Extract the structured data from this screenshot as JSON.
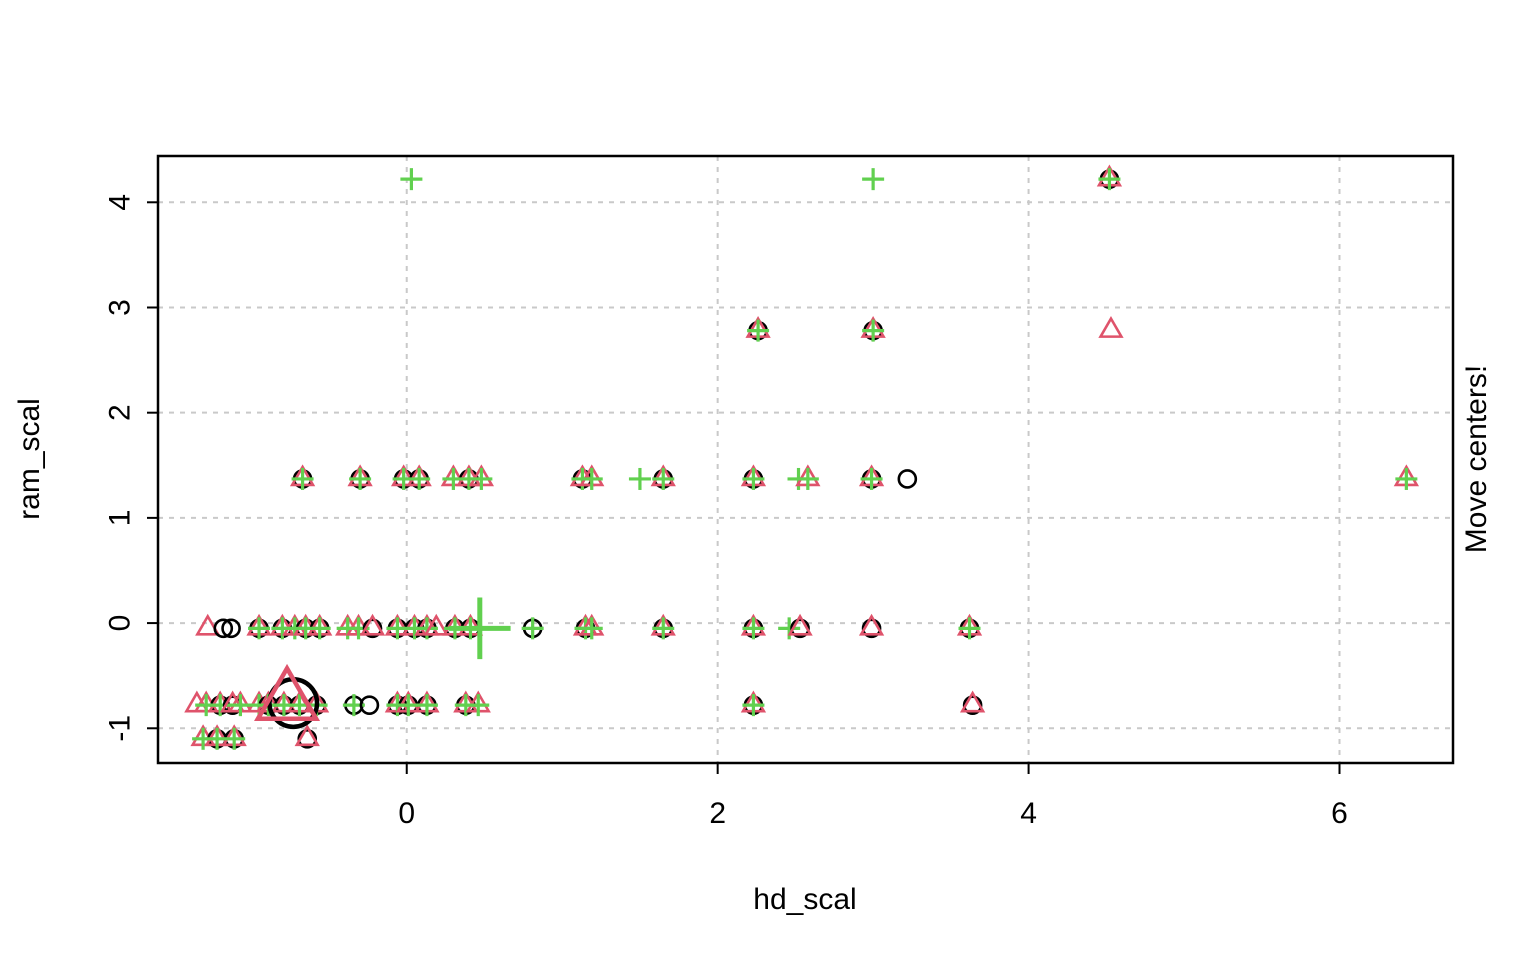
{
  "chart_data": {
    "type": "scatter",
    "title": "",
    "xlabel": "hd_scal",
    "ylabel": "ram_scal",
    "right_label": "Move centers!",
    "xlim": [
      -1.6,
      6.73
    ],
    "ylim": [
      -1.33,
      4.44
    ],
    "xticks": [
      0,
      2,
      4,
      6
    ],
    "yticks": [
      -1,
      0,
      1,
      2,
      3,
      4
    ],
    "grid": {
      "shown": true,
      "style": "dashed",
      "at_x": [
        0,
        2,
        4,
        6
      ],
      "at_y": [
        -1,
        0,
        1,
        2,
        3,
        4
      ]
    },
    "legend_position": "none",
    "colors": {
      "circle": "#000000",
      "triangle": "#DF536B",
      "plus": "#61D04F",
      "grid": "#C9C9C9",
      "box": "#000000",
      "background": "#FFFFFF"
    },
    "glyph_meaning": {
      "circle": "cluster-1 assignment",
      "triangle": "cluster-2 assignment",
      "plus": "cluster-3 assignment",
      "large": "cluster center"
    },
    "points": [
      {
        "x": 0.03,
        "y": 4.22,
        "glyphs": [
          "plus"
        ],
        "size": "normal"
      },
      {
        "x": 3.0,
        "y": 4.22,
        "glyphs": [
          "plus"
        ],
        "size": "normal"
      },
      {
        "x": 4.52,
        "y": 4.22,
        "glyphs": [
          "circle",
          "triangle",
          "plus"
        ],
        "size": "normal"
      },
      {
        "x": 2.26,
        "y": 2.78,
        "glyphs": [
          "circle",
          "triangle",
          "plus"
        ],
        "size": "normal"
      },
      {
        "x": 3.0,
        "y": 2.78,
        "glyphs": [
          "circle",
          "triangle",
          "plus"
        ],
        "size": "normal"
      },
      {
        "x": 4.53,
        "y": 2.78,
        "glyphs": [
          "triangle"
        ],
        "size": "normal"
      },
      {
        "x": -0.67,
        "y": 1.37,
        "glyphs": [
          "circle",
          "triangle",
          "plus"
        ],
        "size": "normal"
      },
      {
        "x": -0.3,
        "y": 1.37,
        "glyphs": [
          "circle",
          "triangle",
          "plus"
        ],
        "size": "normal"
      },
      {
        "x": -0.02,
        "y": 1.37,
        "glyphs": [
          "circle",
          "triangle",
          "plus"
        ],
        "size": "normal"
      },
      {
        "x": 0.08,
        "y": 1.37,
        "glyphs": [
          "circle",
          "triangle",
          "plus"
        ],
        "size": "normal"
      },
      {
        "x": 0.3,
        "y": 1.37,
        "glyphs": [
          "triangle",
          "plus"
        ],
        "size": "normal"
      },
      {
        "x": 0.4,
        "y": 1.37,
        "glyphs": [
          "circle",
          "triangle",
          "plus"
        ],
        "size": "normal"
      },
      {
        "x": 0.48,
        "y": 1.37,
        "glyphs": [
          "triangle",
          "plus"
        ],
        "size": "normal"
      },
      {
        "x": 1.13,
        "y": 1.37,
        "glyphs": [
          "circle",
          "triangle",
          "plus"
        ],
        "size": "normal"
      },
      {
        "x": 1.19,
        "y": 1.37,
        "glyphs": [
          "triangle",
          "plus"
        ],
        "size": "normal"
      },
      {
        "x": 1.5,
        "y": 1.37,
        "glyphs": [
          "plus"
        ],
        "size": "normal"
      },
      {
        "x": 1.65,
        "y": 1.37,
        "glyphs": [
          "circle",
          "triangle",
          "plus"
        ],
        "size": "normal"
      },
      {
        "x": 2.23,
        "y": 1.37,
        "glyphs": [
          "circle",
          "triangle",
          "plus"
        ],
        "size": "normal"
      },
      {
        "x": 2.52,
        "y": 1.37,
        "glyphs": [
          "plus"
        ],
        "size": "normal"
      },
      {
        "x": 2.58,
        "y": 1.37,
        "glyphs": [
          "triangle",
          "plus"
        ],
        "size": "normal"
      },
      {
        "x": 2.99,
        "y": 1.37,
        "glyphs": [
          "circle",
          "triangle",
          "plus"
        ],
        "size": "normal"
      },
      {
        "x": 3.22,
        "y": 1.37,
        "glyphs": [
          "circle"
        ],
        "size": "normal"
      },
      {
        "x": 6.43,
        "y": 1.37,
        "glyphs": [
          "triangle",
          "plus"
        ],
        "size": "normal"
      },
      {
        "x": -1.28,
        "y": -0.05,
        "glyphs": [
          "triangle"
        ],
        "size": "normal"
      },
      {
        "x": -1.18,
        "y": -0.05,
        "glyphs": [
          "circle"
        ],
        "size": "normal"
      },
      {
        "x": -1.13,
        "y": -0.05,
        "glyphs": [
          "circle"
        ],
        "size": "normal"
      },
      {
        "x": -0.95,
        "y": -0.05,
        "glyphs": [
          "circle",
          "triangle",
          "plus"
        ],
        "size": "normal"
      },
      {
        "x": -0.8,
        "y": -0.05,
        "glyphs": [
          "circle",
          "triangle",
          "plus"
        ],
        "size": "normal"
      },
      {
        "x": -0.72,
        "y": -0.05,
        "glyphs": [
          "triangle",
          "plus"
        ],
        "size": "normal"
      },
      {
        "x": -0.65,
        "y": -0.05,
        "glyphs": [
          "circle",
          "triangle",
          "plus"
        ],
        "size": "normal"
      },
      {
        "x": -0.56,
        "y": -0.05,
        "glyphs": [
          "circle",
          "triangle",
          "plus"
        ],
        "size": "normal"
      },
      {
        "x": -0.38,
        "y": -0.05,
        "glyphs": [
          "triangle",
          "plus"
        ],
        "size": "normal"
      },
      {
        "x": -0.31,
        "y": -0.05,
        "glyphs": [
          "triangle",
          "plus"
        ],
        "size": "normal"
      },
      {
        "x": -0.22,
        "y": -0.05,
        "glyphs": [
          "circle",
          "triangle"
        ],
        "size": "normal"
      },
      {
        "x": -0.06,
        "y": -0.05,
        "glyphs": [
          "circle",
          "triangle",
          "plus"
        ],
        "size": "normal"
      },
      {
        "x": 0.05,
        "y": -0.05,
        "glyphs": [
          "circle",
          "triangle",
          "plus"
        ],
        "size": "normal"
      },
      {
        "x": 0.13,
        "y": -0.05,
        "glyphs": [
          "circle",
          "triangle",
          "plus"
        ],
        "size": "normal"
      },
      {
        "x": 0.19,
        "y": -0.05,
        "glyphs": [
          "triangle"
        ],
        "size": "normal"
      },
      {
        "x": 0.31,
        "y": -0.05,
        "glyphs": [
          "circle",
          "triangle",
          "plus"
        ],
        "size": "normal"
      },
      {
        "x": 0.41,
        "y": -0.05,
        "glyphs": [
          "circle",
          "triangle",
          "plus"
        ],
        "size": "normal"
      },
      {
        "x": 0.81,
        "y": -0.05,
        "glyphs": [
          "circle",
          "plus"
        ],
        "size": "normal"
      },
      {
        "x": 1.15,
        "y": -0.05,
        "glyphs": [
          "circle",
          "triangle",
          "plus"
        ],
        "size": "normal"
      },
      {
        "x": 1.19,
        "y": -0.05,
        "glyphs": [
          "triangle",
          "plus"
        ],
        "size": "normal"
      },
      {
        "x": 1.65,
        "y": -0.05,
        "glyphs": [
          "circle",
          "triangle",
          "plus"
        ],
        "size": "normal"
      },
      {
        "x": 2.23,
        "y": -0.05,
        "glyphs": [
          "circle",
          "triangle",
          "plus"
        ],
        "size": "normal"
      },
      {
        "x": 2.46,
        "y": -0.05,
        "glyphs": [
          "plus"
        ],
        "size": "normal"
      },
      {
        "x": 2.53,
        "y": -0.05,
        "glyphs": [
          "circle",
          "triangle"
        ],
        "size": "normal"
      },
      {
        "x": 2.99,
        "y": -0.05,
        "glyphs": [
          "circle",
          "triangle"
        ],
        "size": "normal"
      },
      {
        "x": 3.62,
        "y": -0.05,
        "glyphs": [
          "circle",
          "triangle",
          "plus"
        ],
        "size": "normal"
      },
      {
        "x": -1.35,
        "y": -0.78,
        "glyphs": [
          "triangle"
        ],
        "size": "normal"
      },
      {
        "x": -1.29,
        "y": -0.78,
        "glyphs": [
          "triangle",
          "plus"
        ],
        "size": "normal"
      },
      {
        "x": -1.2,
        "y": -0.78,
        "glyphs": [
          "circle",
          "triangle",
          "plus"
        ],
        "size": "normal"
      },
      {
        "x": -1.12,
        "y": -0.78,
        "glyphs": [
          "circle",
          "triangle"
        ],
        "size": "normal"
      },
      {
        "x": -1.07,
        "y": -0.78,
        "glyphs": [
          "triangle",
          "plus"
        ],
        "size": "normal"
      },
      {
        "x": -0.95,
        "y": -0.78,
        "glyphs": [
          "triangle",
          "plus"
        ],
        "size": "normal"
      },
      {
        "x": -0.89,
        "y": -0.78,
        "glyphs": [
          "circle",
          "triangle",
          "plus"
        ],
        "size": "normal"
      },
      {
        "x": -0.79,
        "y": -0.78,
        "glyphs": [
          "circle",
          "triangle",
          "plus"
        ],
        "size": "normal"
      },
      {
        "x": -0.69,
        "y": -0.78,
        "glyphs": [
          "circle",
          "triangle",
          "plus"
        ],
        "size": "normal"
      },
      {
        "x": -0.58,
        "y": -0.78,
        "glyphs": [
          "circle",
          "triangle",
          "plus"
        ],
        "size": "normal"
      },
      {
        "x": -0.34,
        "y": -0.78,
        "glyphs": [
          "circle",
          "plus"
        ],
        "size": "normal"
      },
      {
        "x": -0.24,
        "y": -0.78,
        "glyphs": [
          "circle"
        ],
        "size": "normal"
      },
      {
        "x": -0.06,
        "y": -0.78,
        "glyphs": [
          "circle",
          "triangle",
          "plus"
        ],
        "size": "normal"
      },
      {
        "x": 0.01,
        "y": -0.78,
        "glyphs": [
          "circle",
          "triangle",
          "plus"
        ],
        "size": "normal"
      },
      {
        "x": 0.13,
        "y": -0.78,
        "glyphs": [
          "circle",
          "triangle",
          "plus"
        ],
        "size": "normal"
      },
      {
        "x": 0.38,
        "y": -0.78,
        "glyphs": [
          "circle",
          "triangle",
          "plus"
        ],
        "size": "normal"
      },
      {
        "x": 0.46,
        "y": -0.78,
        "glyphs": [
          "triangle",
          "plus"
        ],
        "size": "normal"
      },
      {
        "x": 2.23,
        "y": -0.78,
        "glyphs": [
          "circle",
          "triangle",
          "plus"
        ],
        "size": "normal"
      },
      {
        "x": 3.64,
        "y": -0.78,
        "glyphs": [
          "circle",
          "triangle"
        ],
        "size": "normal"
      },
      {
        "x": -1.31,
        "y": -1.1,
        "glyphs": [
          "triangle",
          "plus"
        ],
        "size": "normal"
      },
      {
        "x": -1.22,
        "y": -1.1,
        "glyphs": [
          "circle",
          "triangle",
          "plus"
        ],
        "size": "normal"
      },
      {
        "x": -1.11,
        "y": -1.1,
        "glyphs": [
          "circle",
          "triangle",
          "plus"
        ],
        "size": "normal"
      },
      {
        "x": -0.64,
        "y": -1.1,
        "glyphs": [
          "circle",
          "triangle"
        ],
        "size": "normal"
      },
      {
        "x": -0.73,
        "y": -0.76,
        "glyphs": [
          "circle"
        ],
        "size": "large"
      },
      {
        "x": -0.77,
        "y": -0.75,
        "glyphs": [
          "triangle"
        ],
        "size": "large"
      },
      {
        "x": 0.47,
        "y": -0.05,
        "glyphs": [
          "plus"
        ],
        "size": "large"
      }
    ]
  }
}
